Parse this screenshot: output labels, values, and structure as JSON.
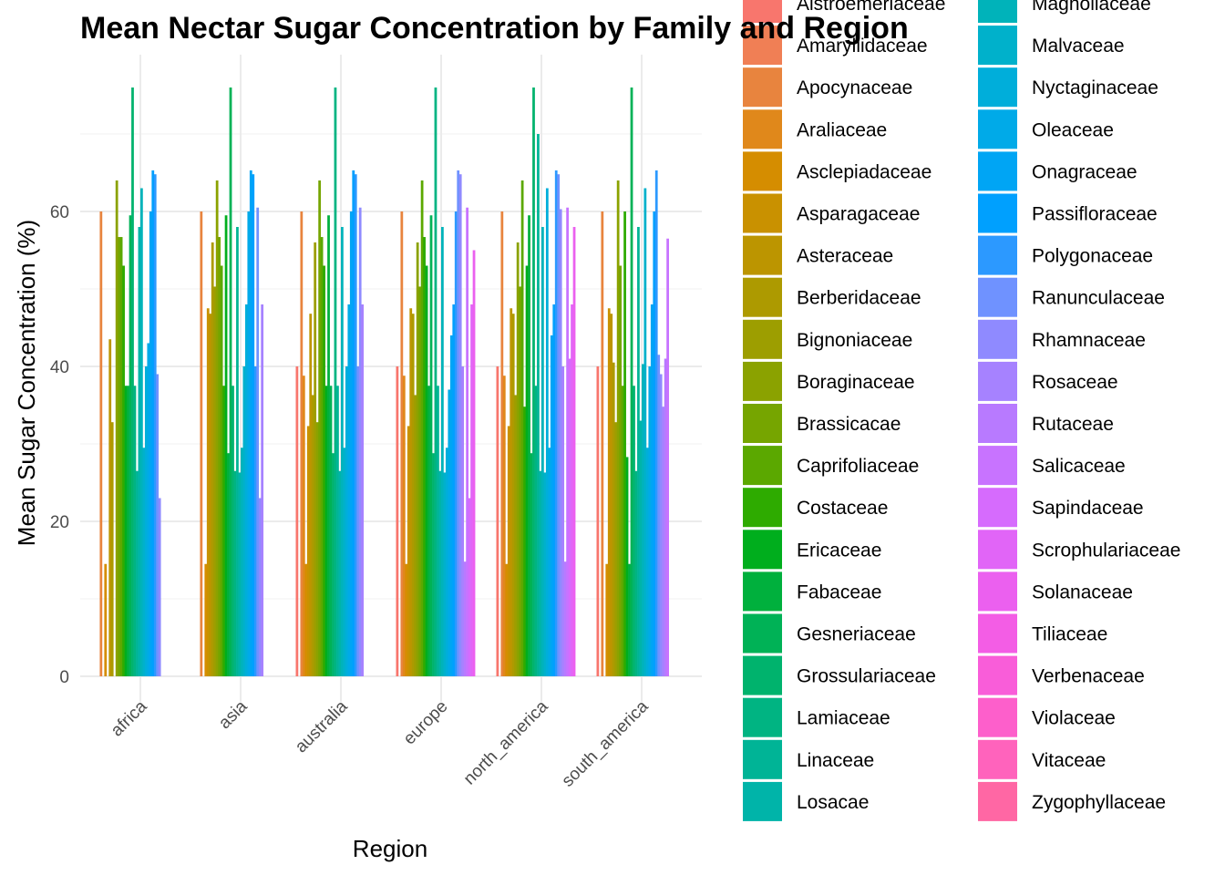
{
  "chart_data": {
    "type": "bar",
    "title": "Mean Nectar Sugar Concentration by Family and Region",
    "xlabel": "Region",
    "ylabel": "Mean Sugar Concentration (%)",
    "ylim": [
      0,
      76
    ],
    "yticks": [
      0,
      20,
      40,
      60
    ],
    "grid": true,
    "legend_position": "right",
    "categories": [
      "africa",
      "asia",
      "australia",
      "europe",
      "north_america",
      "south_america"
    ],
    "series": [
      {
        "name": "Alstroemeriaceae",
        "color": "#F8766D",
        "values": [
          null,
          null,
          40,
          40,
          40,
          40
        ]
      },
      {
        "name": "Amaryllidaceae",
        "color": "#F07F55",
        "values": [
          null,
          null,
          null,
          null,
          null,
          null
        ]
      },
      {
        "name": "Apocynaceae",
        "color": "#E8843E",
        "values": [
          60,
          60,
          60,
          60,
          60,
          60
        ]
      },
      {
        "name": "Araliaceae",
        "color": "#E0881B",
        "values": [
          null,
          null,
          38.8,
          38.8,
          38.8,
          null
        ]
      },
      {
        "name": "Asclepiadaceae",
        "color": "#D58D00",
        "values": [
          14.5,
          14.5,
          14.5,
          14.5,
          14.5,
          14.5
        ]
      },
      {
        "name": "Asparagaceae",
        "color": "#C99100",
        "values": [
          null,
          47.5,
          32.3,
          32.3,
          32.3,
          47.5
        ]
      },
      {
        "name": "Asteraceae",
        "color": "#BC9500",
        "values": [
          43.5,
          46.8,
          46.8,
          47.5,
          47.5,
          46.8
        ]
      },
      {
        "name": "Berberidaceae",
        "color": "#AD9A00",
        "values": [
          32.8,
          56,
          36.3,
          46.8,
          46.8,
          40.5
        ]
      },
      {
        "name": "Bignoniaceae",
        "color": "#9D9E00",
        "values": [
          null,
          50.3,
          56,
          36.3,
          36.3,
          32.8
        ]
      },
      {
        "name": "Boraginaceae",
        "color": "#8BA200",
        "values": [
          64,
          64,
          32.8,
          56,
          56,
          64
        ]
      },
      {
        "name": "Brassicacae",
        "color": "#76A500",
        "values": [
          56.7,
          56.7,
          64,
          50.3,
          50.3,
          53
        ]
      },
      {
        "name": "Caprifoliaceae",
        "color": "#5BA800",
        "values": [
          56.7,
          53,
          56.7,
          64,
          64,
          37.5
        ]
      },
      {
        "name": "Costaceae",
        "color": "#2EAB00",
        "values": [
          53,
          37.5,
          53,
          56.7,
          34.8,
          60
        ]
      },
      {
        "name": "Ericaceae",
        "color": "#00AE1D",
        "values": [
          37.5,
          59.5,
          37.5,
          53,
          53,
          28.3
        ]
      },
      {
        "name": "Fabaceae",
        "color": "#00B03D",
        "values": [
          37.5,
          28.8,
          59.5,
          37.5,
          59.5,
          14.5
        ]
      },
      {
        "name": "Gesneriaceae",
        "color": "#00B256",
        "values": [
          59.5,
          76,
          37.5,
          59.5,
          28.8,
          76
        ]
      },
      {
        "name": "Grossulariaceae",
        "color": "#00B36D",
        "values": [
          76,
          37.5,
          28.8,
          28.8,
          76,
          37.5
        ]
      },
      {
        "name": "Lamiaceae",
        "color": "#00B482",
        "values": [
          37.5,
          26.5,
          76,
          76,
          37.5,
          26.5
        ]
      },
      {
        "name": "Linaceae",
        "color": "#00B496",
        "values": [
          26.5,
          58,
          37.5,
          37.5,
          70,
          58
        ]
      },
      {
        "name": "Losacae",
        "color": "#00B4A9",
        "values": [
          58,
          26.3,
          26.5,
          26.5,
          26.5,
          33
        ]
      },
      {
        "name": "Magnoliaceae",
        "color": "#00B3BA",
        "values": [
          63,
          29.5,
          58,
          58,
          58,
          40.3
        ]
      },
      {
        "name": "Malvaceae",
        "color": "#00B1CB",
        "values": [
          29.5,
          40,
          29.5,
          26.3,
          26.3,
          63
        ]
      },
      {
        "name": "Nyctaginaceae",
        "color": "#00AEDA",
        "values": [
          40,
          48,
          40,
          29.5,
          63,
          29.5
        ]
      },
      {
        "name": "Oleaceae",
        "color": "#00AAE8",
        "values": [
          43,
          60,
          48,
          37,
          29.5,
          40
        ]
      },
      {
        "name": "Onagraceae",
        "color": "#00A5F4",
        "values": [
          60,
          65.3,
          60,
          44,
          44,
          48
        ]
      },
      {
        "name": "Passifloraceae",
        "color": "#00A0FE",
        "values": [
          65.3,
          64.8,
          65.3,
          48,
          48,
          60
        ]
      },
      {
        "name": "Polygonaceae",
        "color": "#2C99FF",
        "values": [
          64.8,
          40,
          64.8,
          60,
          65.3,
          65.3
        ]
      },
      {
        "name": "Ranunculaceae",
        "color": "#6F92FF",
        "values": [
          39,
          60.5,
          40,
          65.3,
          64.8,
          41.5
        ]
      },
      {
        "name": "Rhamnaceae",
        "color": "#8F8AFF",
        "values": [
          23,
          23,
          60.5,
          64.8,
          60.3,
          39
        ]
      },
      {
        "name": "Rosaceae",
        "color": "#A682FF",
        "values": [
          null,
          48,
          48,
          40,
          40,
          34.8
        ]
      },
      {
        "name": "Rutaceae",
        "color": "#B87AFF",
        "values": [
          null,
          null,
          null,
          14.8,
          14.8,
          41
        ]
      },
      {
        "name": "Salicaceae",
        "color": "#C873FF",
        "values": [
          null,
          null,
          null,
          60.5,
          60.5,
          56.5
        ]
      },
      {
        "name": "Sapindaceae",
        "color": "#D66BFD",
        "values": [
          null,
          null,
          null,
          23,
          41,
          null
        ]
      },
      {
        "name": "Scrophulariaceae",
        "color": "#E165F7",
        "values": [
          null,
          null,
          null,
          48,
          48,
          null
        ]
      },
      {
        "name": "Solanaceae",
        "color": "#EB60EF",
        "values": [
          null,
          null,
          null,
          55,
          58,
          null
        ]
      },
      {
        "name": "Tiliaceae",
        "color": "#F35DE5",
        "values": [
          null,
          null,
          null,
          null,
          null,
          null
        ]
      },
      {
        "name": "Verbenaceae",
        "color": "#F95DD9",
        "values": [
          null,
          null,
          null,
          null,
          null,
          null
        ]
      },
      {
        "name": "Violaceae",
        "color": "#FD5FCB",
        "values": [
          null,
          null,
          null,
          null,
          null,
          null
        ]
      },
      {
        "name": "Vitaceae",
        "color": "#FF63BC",
        "values": [
          null,
          null,
          null,
          null,
          null,
          null
        ]
      },
      {
        "name": "Zygophyllaceae",
        "color": "#FF67A4",
        "values": [
          null,
          null,
          null,
          null,
          null,
          null
        ]
      }
    ]
  }
}
